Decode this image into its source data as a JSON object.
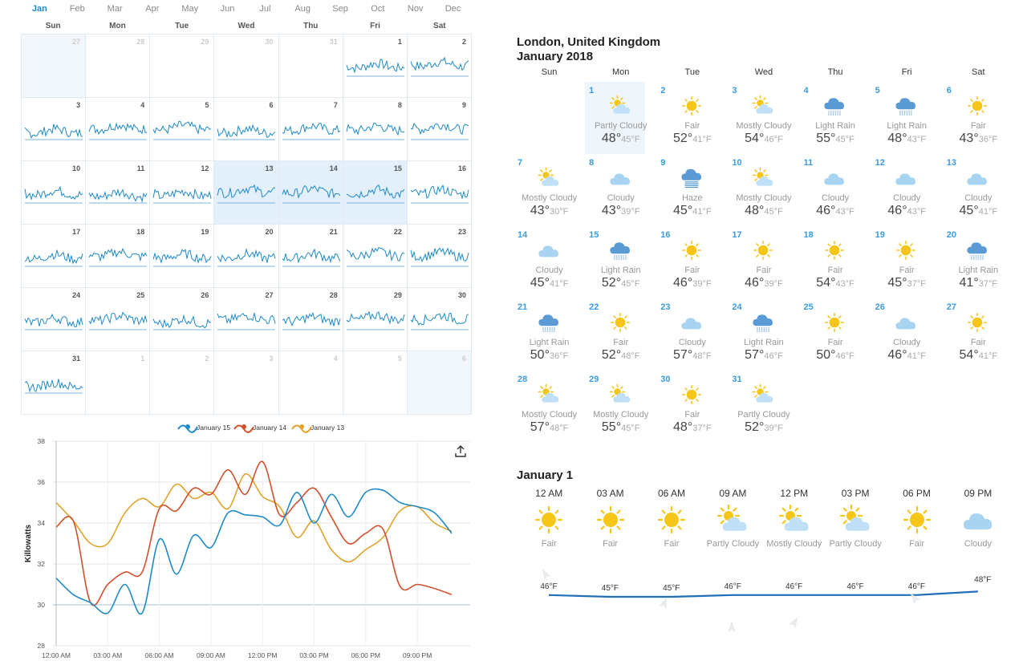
{
  "months": [
    "Jan",
    "Feb",
    "Mar",
    "Apr",
    "May",
    "Jun",
    "Jul",
    "Aug",
    "Sep",
    "Oct",
    "Nov",
    "Dec"
  ],
  "active_month": "Jan",
  "calendar": {
    "dow": [
      "Sun",
      "Mon",
      "Tue",
      "Wed",
      "Thu",
      "Fri",
      "Sat"
    ],
    "cells": [
      {
        "day": "27",
        "other": true,
        "shaded": true
      },
      {
        "day": "28",
        "other": true
      },
      {
        "day": "29",
        "other": true
      },
      {
        "day": "30",
        "other": true
      },
      {
        "day": "31",
        "other": true
      },
      {
        "day": "1"
      },
      {
        "day": "2"
      },
      {
        "day": "3"
      },
      {
        "day": "4"
      },
      {
        "day": "5"
      },
      {
        "day": "6"
      },
      {
        "day": "7"
      },
      {
        "day": "8"
      },
      {
        "day": "9"
      },
      {
        "day": "10"
      },
      {
        "day": "11"
      },
      {
        "day": "12"
      },
      {
        "day": "13",
        "sel": true
      },
      {
        "day": "14",
        "sel": true
      },
      {
        "day": "15",
        "sel": true
      },
      {
        "day": "16"
      },
      {
        "day": "17"
      },
      {
        "day": "18"
      },
      {
        "day": "19"
      },
      {
        "day": "20"
      },
      {
        "day": "21"
      },
      {
        "day": "22"
      },
      {
        "day": "23"
      },
      {
        "day": "24"
      },
      {
        "day": "25"
      },
      {
        "day": "26"
      },
      {
        "day": "27"
      },
      {
        "day": "28"
      },
      {
        "day": "29"
      },
      {
        "day": "30"
      },
      {
        "day": "31"
      },
      {
        "day": "1",
        "other": true
      },
      {
        "day": "2",
        "other": true
      },
      {
        "day": "3",
        "other": true
      },
      {
        "day": "4",
        "other": true
      },
      {
        "day": "5",
        "other": true
      },
      {
        "day": "6",
        "other": true,
        "shaded": true
      }
    ]
  },
  "chart_data": {
    "type": "line",
    "legend": [
      "January 15",
      "January 14",
      "January 13"
    ],
    "ylabel": "Killowatts",
    "ylim": [
      28,
      38
    ],
    "yticks": [
      "28",
      "30",
      "32",
      "34",
      "36",
      "38"
    ],
    "xticks": [
      "12:00 AM",
      "03:00 AM",
      "06:00 AM",
      "09:00 AM",
      "12:00 PM",
      "03:00 PM",
      "06:00 PM",
      "09:00 PM"
    ],
    "x_hours": [
      0,
      1,
      2,
      3,
      4,
      5,
      6,
      7,
      8,
      9,
      10,
      11,
      12,
      13,
      14,
      15,
      16,
      17,
      18,
      19,
      20,
      21,
      22,
      23
    ],
    "series": [
      {
        "name": "January 15",
        "color": "#1f8ac8",
        "values": [
          31.3,
          30.5,
          30.1,
          29.6,
          31.0,
          29.6,
          33.2,
          31.5,
          33.4,
          32.8,
          34.5,
          34.4,
          34.3,
          33.9,
          35.5,
          34.0,
          35.4,
          34.3,
          35.5,
          35.6,
          35.0,
          34.8,
          34.5,
          33.5
        ]
      },
      {
        "name": "January 14",
        "color": "#d2502a",
        "values": [
          33.8,
          34.1,
          30.1,
          31.0,
          31.6,
          31.6,
          34.7,
          34.6,
          35.7,
          35.4,
          36.6,
          35.4,
          37.0,
          34.4,
          35.0,
          35.7,
          34.3,
          33.0,
          33.5,
          33.7,
          30.9,
          31.0,
          30.8,
          30.5
        ]
      },
      {
        "name": "January 13",
        "color": "#e0a22a",
        "values": [
          35.0,
          34.1,
          33.0,
          33.0,
          34.5,
          35.2,
          34.8,
          35.9,
          35.2,
          35.5,
          34.7,
          36.4,
          35.3,
          34.8,
          33.3,
          34.1,
          32.7,
          32.1,
          32.7,
          33.3,
          34.6,
          34.8,
          34.0,
          33.6
        ]
      }
    ]
  },
  "weather": {
    "location": "London, United Kingdom",
    "month_year": "January 2018",
    "dow": [
      "Sun",
      "Mon",
      "Tue",
      "Wed",
      "Thu",
      "Fri",
      "Sat"
    ],
    "days": [
      {
        "day": "1",
        "cond": "Partly Cloudy",
        "hi": "48°",
        "lo": "45°F",
        "icon": "partly-cloudy",
        "col": 1
      },
      {
        "day": "2",
        "cond": "Fair",
        "hi": "52°",
        "lo": "41°F",
        "icon": "sun"
      },
      {
        "day": "3",
        "cond": "Mostly Cloudy",
        "hi": "54°",
        "lo": "46°F",
        "icon": "partly-cloudy"
      },
      {
        "day": "4",
        "cond": "Light Rain",
        "hi": "55°",
        "lo": "45°F",
        "icon": "rain"
      },
      {
        "day": "5",
        "cond": "Light Rain",
        "hi": "48°",
        "lo": "43°F",
        "icon": "rain"
      },
      {
        "day": "6",
        "cond": "Fair",
        "hi": "43°",
        "lo": "36°F",
        "icon": "sun"
      },
      {
        "day": "7",
        "cond": "Mostly Cloudy",
        "hi": "43°",
        "lo": "30°F",
        "icon": "partly-cloudy"
      },
      {
        "day": "8",
        "cond": "Cloudy",
        "hi": "43°",
        "lo": "39°F",
        "icon": "cloud"
      },
      {
        "day": "9",
        "cond": "Haze",
        "hi": "45°",
        "lo": "41°F",
        "icon": "haze"
      },
      {
        "day": "10",
        "cond": "Mostly Cloudy",
        "hi": "48°",
        "lo": "45°F",
        "icon": "partly-cloudy"
      },
      {
        "day": "11",
        "cond": "Cloudy",
        "hi": "46°",
        "lo": "43°F",
        "icon": "cloud"
      },
      {
        "day": "12",
        "cond": "Cloudy",
        "hi": "46°",
        "lo": "43°F",
        "icon": "cloud"
      },
      {
        "day": "13",
        "cond": "Cloudy",
        "hi": "45°",
        "lo": "41°F",
        "icon": "cloud"
      },
      {
        "day": "14",
        "cond": "Cloudy",
        "hi": "45°",
        "lo": "41°F",
        "icon": "cloud"
      },
      {
        "day": "15",
        "cond": "Light Rain",
        "hi": "52°",
        "lo": "45°F",
        "icon": "rain"
      },
      {
        "day": "16",
        "cond": "Fair",
        "hi": "46°",
        "lo": "39°F",
        "icon": "sun"
      },
      {
        "day": "17",
        "cond": "Fair",
        "hi": "46°",
        "lo": "39°F",
        "icon": "sun"
      },
      {
        "day": "18",
        "cond": "Fair",
        "hi": "54°",
        "lo": "43°F",
        "icon": "sun"
      },
      {
        "day": "19",
        "cond": "Fair",
        "hi": "45°",
        "lo": "37°F",
        "icon": "sun"
      },
      {
        "day": "20",
        "cond": "Light Rain",
        "hi": "41°",
        "lo": "37°F",
        "icon": "rain"
      },
      {
        "day": "21",
        "cond": "Light Rain",
        "hi": "50°",
        "lo": "36°F",
        "icon": "rain"
      },
      {
        "day": "22",
        "cond": "Fair",
        "hi": "52°",
        "lo": "48°F",
        "icon": "sun"
      },
      {
        "day": "23",
        "cond": "Cloudy",
        "hi": "57°",
        "lo": "48°F",
        "icon": "cloud"
      },
      {
        "day": "24",
        "cond": "Light Rain",
        "hi": "57°",
        "lo": "46°F",
        "icon": "rain"
      },
      {
        "day": "25",
        "cond": "Fair",
        "hi": "50°",
        "lo": "46°F",
        "icon": "sun"
      },
      {
        "day": "26",
        "cond": "Cloudy",
        "hi": "46°",
        "lo": "41°F",
        "icon": "cloud"
      },
      {
        "day": "27",
        "cond": "Fair",
        "hi": "54°",
        "lo": "41°F",
        "icon": "sun"
      },
      {
        "day": "28",
        "cond": "Mostly Cloudy",
        "hi": "57°",
        "lo": "48°F",
        "icon": "partly-cloudy"
      },
      {
        "day": "29",
        "cond": "Mostly Cloudy",
        "hi": "55°",
        "lo": "45°F",
        "icon": "partly-cloudy"
      },
      {
        "day": "30",
        "cond": "Fair",
        "hi": "48°",
        "lo": "37°F",
        "icon": "sun"
      },
      {
        "day": "31",
        "cond": "Partly Cloudy",
        "hi": "52°",
        "lo": "39°F",
        "icon": "partly-cloudy"
      }
    ]
  },
  "hourly": {
    "title": "January 1",
    "items": [
      {
        "time": "12 AM",
        "cond": "Fair",
        "icon": "sun",
        "temp": "46°F",
        "t": 46
      },
      {
        "time": "03 AM",
        "cond": "Fair",
        "icon": "sun",
        "temp": "45°F",
        "t": 45
      },
      {
        "time": "06 AM",
        "cond": "Fair",
        "icon": "sun",
        "temp": "45°F",
        "t": 45
      },
      {
        "time": "09 AM",
        "cond": "Partly Cloudy",
        "icon": "partly-cloudy",
        "temp": "46°F",
        "t": 46
      },
      {
        "time": "12 PM",
        "cond": "Mostly Cloudy",
        "icon": "partly-cloudy",
        "temp": "46°F",
        "t": 46
      },
      {
        "time": "03 PM",
        "cond": "Partly Cloudy",
        "icon": "partly-cloudy",
        "temp": "46°F",
        "t": 46
      },
      {
        "time": "06 PM",
        "cond": "Fair",
        "icon": "sun",
        "temp": "46°F",
        "t": 46
      },
      {
        "time": "09 PM",
        "cond": "Cloudy",
        "icon": "cloud",
        "temp": "48°F",
        "t": 48
      }
    ]
  },
  "colors": {
    "accent": "#1a8cd8",
    "sun": "#f5c518",
    "cloud": "#a8d4f2",
    "rain_cloud": "#5b9bd5"
  }
}
